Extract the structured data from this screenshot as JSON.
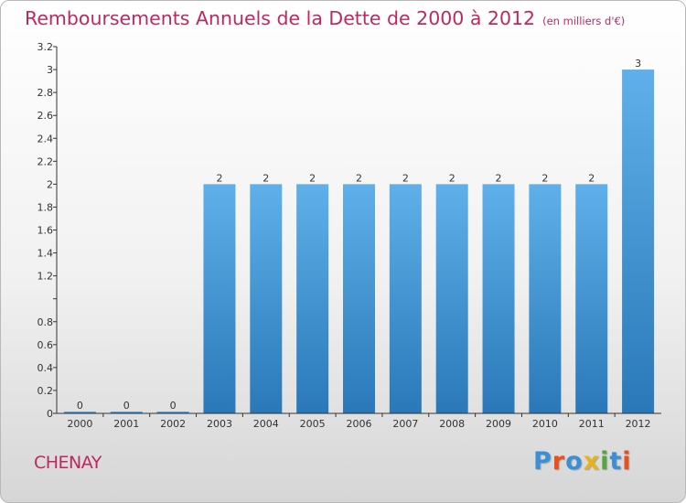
{
  "header": {
    "title": "Remboursements Annuels de la Dette de 2000 à 2012",
    "unit": "(en milliers d'€)"
  },
  "footer": {
    "commune": "CHENAY",
    "logo_text": "Proxiti",
    "logo_colors": [
      "#3a8fd6",
      "#e8501e",
      "#3a8fd6",
      "#e8b21e",
      "#52a83a",
      "#3a8fd6",
      "#e8501e"
    ]
  },
  "chart_data": {
    "type": "bar",
    "title": "Remboursements Annuels de la Dette de 2000 à 2012",
    "xlabel": "",
    "ylabel": "",
    "categories": [
      "2000",
      "2001",
      "2002",
      "2003",
      "2004",
      "2005",
      "2006",
      "2007",
      "2008",
      "2009",
      "2010",
      "2011",
      "2012"
    ],
    "values": [
      0,
      0,
      0,
      2,
      2,
      2,
      2,
      2,
      2,
      2,
      2,
      2,
      3
    ],
    "value_labels": [
      "0",
      "0",
      "0",
      "2",
      "2",
      "2",
      "2",
      "2",
      "2",
      "2",
      "2",
      "2",
      "3"
    ],
    "ylim": [
      0,
      3.2
    ],
    "yticks": [
      0,
      0.2,
      0.4,
      0.6,
      0.8,
      1,
      1.2,
      1.4,
      1.6,
      1.8,
      2,
      2.2,
      2.4,
      2.6,
      2.8,
      3,
      3.2
    ],
    "ytick_labels": [
      "0",
      "0.2",
      "0.4",
      "0.6",
      "0.8",
      "",
      "1.2",
      "1.4",
      "1.6",
      "1.8",
      "2",
      "2.2",
      "2.4",
      "2.6",
      "2.8",
      "3",
      "3.2"
    ],
    "bar_color_top": "#5fb0ea",
    "bar_color_bottom": "#2a78b8",
    "grid": false,
    "legend": "none"
  }
}
